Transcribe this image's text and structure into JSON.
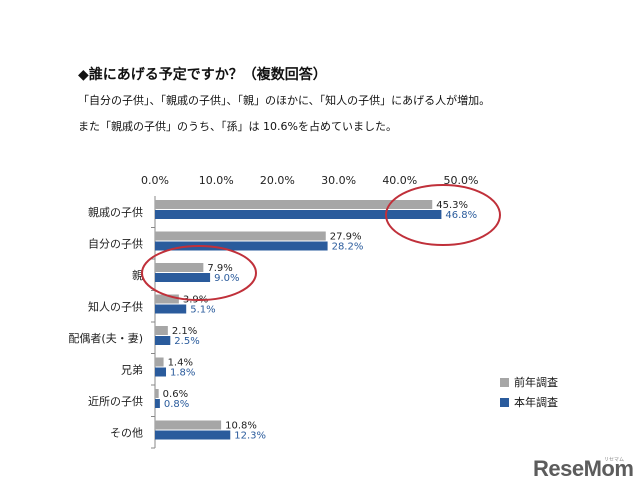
{
  "header": {
    "title": "◆誰にあげる予定ですか？（複数回答）",
    "subtitle_1": "「自分の子供」、「親戚の子供」、「親」のほかに、「知人の子供」にあげる人が増加。",
    "subtitle_2": "また「親戚の子供」のうち、「孫」は 10.6%を占めていました。"
  },
  "chart_data": {
    "type": "bar",
    "orientation": "horizontal",
    "categories": [
      "親戚の子供",
      "自分の子供",
      "親",
      "知人の子供",
      "配偶者(夫・妻)",
      "兄弟",
      "近所の子供",
      "その他"
    ],
    "series": [
      {
        "name": "前年調査",
        "values": [
          45.3,
          27.9,
          7.9,
          3.9,
          2.1,
          1.4,
          0.6,
          10.8
        ],
        "labels": [
          "45.3%",
          "27.9%",
          "7.9%",
          "3.9%",
          "2.1%",
          "1.4%",
          "0.6%",
          "10.8%"
        ],
        "color": "#a6a6a6",
        "label_color": "#222222"
      },
      {
        "name": "本年調査",
        "values": [
          46.8,
          28.2,
          9.0,
          5.1,
          2.5,
          1.8,
          0.8,
          12.3
        ],
        "labels": [
          "46.8%",
          "28.2%",
          "9.0%",
          "5.1%",
          "2.5%",
          "1.8%",
          "0.8%",
          "12.3%"
        ],
        "color": "#2a5b9c",
        "label_color": "#2a5b9c"
      }
    ],
    "xticks": [
      "0.0%",
      "10.0%",
      "20.0%",
      "30.0%",
      "40.0%",
      "50.0%"
    ],
    "xlim": [
      0,
      50
    ],
    "legend_position": "bottom-right",
    "grid": false,
    "highlights": [
      "親戚の子供",
      "親"
    ],
    "highlight_color": "#c0303a"
  },
  "branding": {
    "logo": "ReseMom",
    "logo_kana": "リセマム"
  }
}
